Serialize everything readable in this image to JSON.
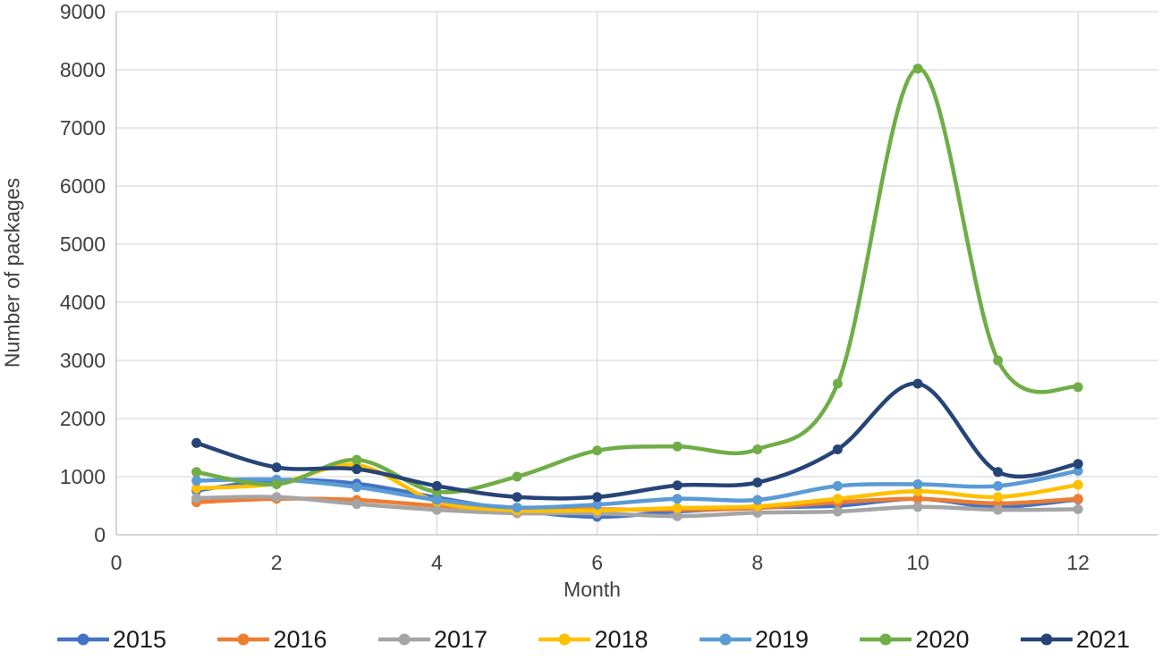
{
  "chart_data": {
    "type": "line",
    "title": "",
    "xlabel": "Month",
    "ylabel": "Number of packages",
    "smooth": true,
    "grid": {
      "horizontal": true,
      "vertical": true
    },
    "legend_position": "bottom",
    "x": [
      1,
      2,
      3,
      4,
      5,
      6,
      7,
      8,
      9,
      10,
      11,
      12
    ],
    "x_axis": {
      "min": 0,
      "max": 13,
      "ticks": [
        0,
        2,
        4,
        6,
        8,
        10,
        12
      ]
    },
    "y_axis": {
      "min": 0,
      "max": 9000,
      "step": 1000,
      "ticks": [
        0,
        1000,
        2000,
        3000,
        4000,
        5000,
        6000,
        7000,
        8000,
        9000
      ]
    },
    "series": [
      {
        "name": "2015",
        "color": "#4472C4",
        "values": [
          760,
          940,
          880,
          640,
          420,
          310,
          400,
          470,
          500,
          620,
          480,
          610
        ]
      },
      {
        "name": "2016",
        "color": "#ED7D31",
        "values": [
          560,
          620,
          600,
          500,
          440,
          440,
          430,
          460,
          560,
          620,
          540,
          620
        ]
      },
      {
        "name": "2017",
        "color": "#A5A5A5",
        "values": [
          630,
          650,
          530,
          430,
          370,
          370,
          320,
          380,
          400,
          480,
          430,
          440
        ]
      },
      {
        "name": "2018",
        "color": "#FFC000",
        "values": [
          800,
          880,
          1200,
          570,
          420,
          420,
          460,
          490,
          620,
          750,
          650,
          860
        ]
      },
      {
        "name": "2019",
        "color": "#5B9BD5",
        "values": [
          930,
          950,
          820,
          600,
          470,
          520,
          620,
          600,
          840,
          870,
          840,
          1100
        ]
      },
      {
        "name": "2020",
        "color": "#70AD47",
        "values": [
          1080,
          870,
          1290,
          740,
          1000,
          1450,
          1520,
          1470,
          2600,
          8020,
          3000,
          2540
        ]
      },
      {
        "name": "2021",
        "color": "#264478",
        "values": [
          1580,
          1160,
          1130,
          840,
          650,
          650,
          850,
          900,
          1470,
          2600,
          1080,
          1220
        ]
      }
    ]
  },
  "styles": {
    "grid_color": "#D9D9D9",
    "axis_color": "#BFBFBF",
    "tick_color": "#404040",
    "legend_text_color": "#1A1A1A",
    "background": "#FFFFFF"
  }
}
